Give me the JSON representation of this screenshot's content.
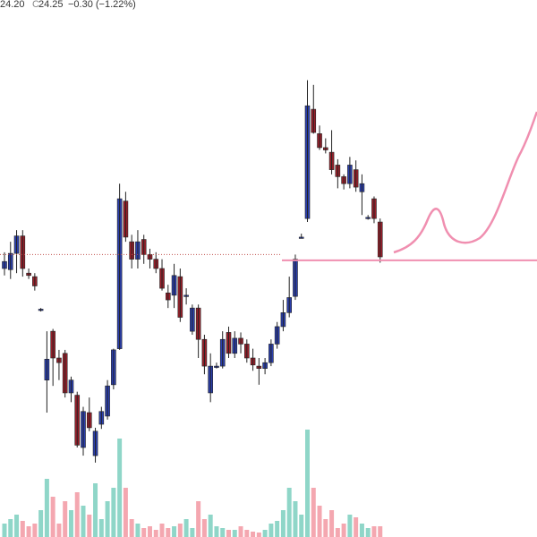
{
  "header": {
    "low": "24.20",
    "close_label": "C",
    "close": "24.25",
    "change": "−0.30 (−1.22%)"
  },
  "chart_data": {
    "type": "candlestick",
    "ylim": [
      21.84,
      26.46
    ],
    "up_color": "#2b3fae",
    "down_color": "#9a1f2a",
    "volume_up_color": "#8fd6c8",
    "volume_down_color": "#f4a7b0",
    "reference_line": 24.27,
    "level_line": 24.22,
    "level_color": "#f08fb0",
    "open": [
      24.15,
      24.14,
      24.28,
      24.43,
      24.11,
      24.08,
      23.8,
      23.19,
      23.61,
      23.38,
      23.42,
      23.08,
      23.06,
      22.61,
      22.91,
      22.54,
      22.81,
      22.88,
      23.15,
      23.46,
      24.73,
      24.38,
      24.23,
      24.4,
      24.27,
      24.23,
      24.15,
      23.94,
      23.92,
      24.08,
      23.92,
      23.61,
      23.81,
      23.54,
      23.08,
      23.31,
      23.31,
      23.6,
      23.42,
      23.55,
      23.5,
      23.38,
      23.31,
      23.29,
      23.34,
      23.5,
      23.65,
      23.77,
      23.91,
      24.42,
      24.58,
      25.52,
      25.31,
      25.19,
      25.15,
      25.04,
      24.94,
      24.88,
      25.0,
      24.81,
      24.59,
      24.75,
      24.55
    ],
    "high": [
      24.29,
      24.38,
      24.48,
      24.48,
      24.15,
      24.11,
      23.81,
      23.61,
      23.63,
      23.45,
      23.45,
      23.22,
      23.09,
      22.96,
      23.04,
      22.78,
      22.96,
      23.19,
      23.46,
      24.88,
      24.81,
      24.44,
      24.48,
      24.44,
      24.32,
      24.29,
      24.23,
      24.01,
      24.19,
      24.15,
      23.98,
      23.84,
      23.84,
      23.58,
      23.42,
      23.34,
      23.61,
      23.65,
      23.61,
      23.6,
      23.54,
      23.46,
      23.38,
      23.38,
      23.54,
      23.69,
      23.88,
      24.08,
      24.27,
      24.45,
      25.77,
      25.73,
      25.38,
      25.27,
      25.34,
      25.09,
      24.96,
      25.11,
      25.08,
      24.96,
      24.61,
      24.77,
      24.58
    ],
    "low": [
      24.09,
      24.06,
      24.11,
      24.08,
      24.06,
      23.96,
      23.78,
      22.91,
      23.14,
      23.19,
      23.04,
      23.0,
      22.61,
      22.54,
      22.75,
      22.48,
      22.77,
      22.85,
      23.11,
      23.45,
      24.38,
      24.15,
      24.15,
      24.19,
      24.15,
      24.11,
      23.96,
      23.81,
      23.81,
      23.69,
      23.84,
      23.58,
      23.38,
      23.24,
      23.0,
      23.29,
      23.29,
      23.38,
      23.38,
      23.42,
      23.34,
      23.27,
      23.15,
      23.24,
      23.31,
      23.46,
      23.61,
      23.73,
      23.88,
      24.41,
      24.55,
      25.31,
      25.17,
      25.14,
      24.96,
      24.84,
      24.83,
      24.84,
      24.81,
      24.61,
      24.57,
      24.54,
      24.2
    ],
    "close": [
      24.21,
      24.28,
      24.43,
      24.15,
      24.09,
      24.0,
      23.8,
      23.37,
      23.38,
      23.34,
      23.08,
      23.19,
      22.63,
      22.92,
      22.78,
      22.75,
      22.92,
      23.14,
      23.45,
      24.75,
      24.42,
      24.23,
      24.38,
      24.27,
      24.23,
      24.15,
      23.98,
      23.88,
      24.09,
      23.73,
      23.92,
      23.81,
      23.54,
      23.31,
      23.31,
      23.31,
      23.54,
      23.42,
      23.55,
      23.5,
      23.38,
      23.32,
      23.29,
      23.34,
      23.5,
      23.65,
      23.77,
      23.9,
      24.23,
      24.42,
      25.55,
      25.32,
      25.19,
      25.17,
      25.0,
      24.94,
      24.88,
      25.04,
      24.85,
      24.88,
      24.59,
      24.58,
      24.25
    ],
    "volume_ylim": [
      0,
      130
    ],
    "volume": [
      15,
      20,
      25,
      18,
      12,
      15,
      30,
      65,
      45,
      15,
      40,
      30,
      50,
      35,
      25,
      60,
      20,
      40,
      55,
      110,
      55,
      20,
      15,
      10,
      12,
      8,
      15,
      10,
      12,
      15,
      20,
      10,
      40,
      20,
      25,
      12,
      10,
      8,
      8,
      12,
      8,
      6,
      5,
      8,
      15,
      18,
      30,
      55,
      40,
      25,
      120,
      55,
      35,
      20,
      30,
      10,
      15,
      25,
      22,
      15,
      10,
      12,
      12
    ]
  }
}
